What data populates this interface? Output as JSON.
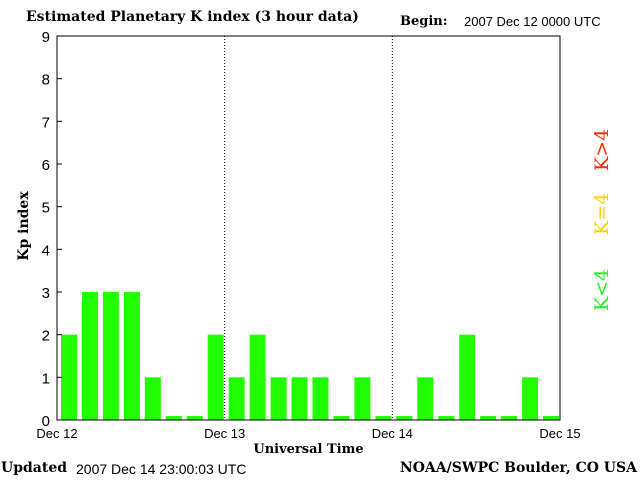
{
  "header": {
    "title": "Estimated Planetary K index (3 hour data)",
    "begin_label": "Begin:",
    "begin_value": "2007 Dec 12 0000 UTC"
  },
  "footer": {
    "updated_label": "Updated",
    "updated_value": "2007 Dec 14 23:00:03 UTC",
    "credit": "NOAA/SWPC Boulder, CO USA"
  },
  "legend": {
    "high": "K>4",
    "mid": "K=4",
    "low": "K<4",
    "colors": {
      "high": "#ff2a00",
      "mid": "#ffd200",
      "low": "#22ee22"
    }
  },
  "chart_data": {
    "type": "bar",
    "title": "Estimated Planetary K index (3 hour data)",
    "xlabel": "Universal Time",
    "ylabel": "Kp index",
    "ylim": [
      0,
      9
    ],
    "yticks": [
      0,
      1,
      2,
      3,
      4,
      5,
      6,
      7,
      8,
      9
    ],
    "day_labels": [
      "Dec 12",
      "Dec 13",
      "Dec 14",
      "Dec 15"
    ],
    "bar_color": "#22ff00",
    "bins_per_day": 8,
    "values": [
      2,
      3,
      3,
      3,
      1,
      0,
      0,
      2,
      1,
      2,
      1,
      1,
      1,
      0,
      1,
      0,
      0,
      1,
      0,
      2,
      0,
      0,
      1,
      0
    ]
  }
}
